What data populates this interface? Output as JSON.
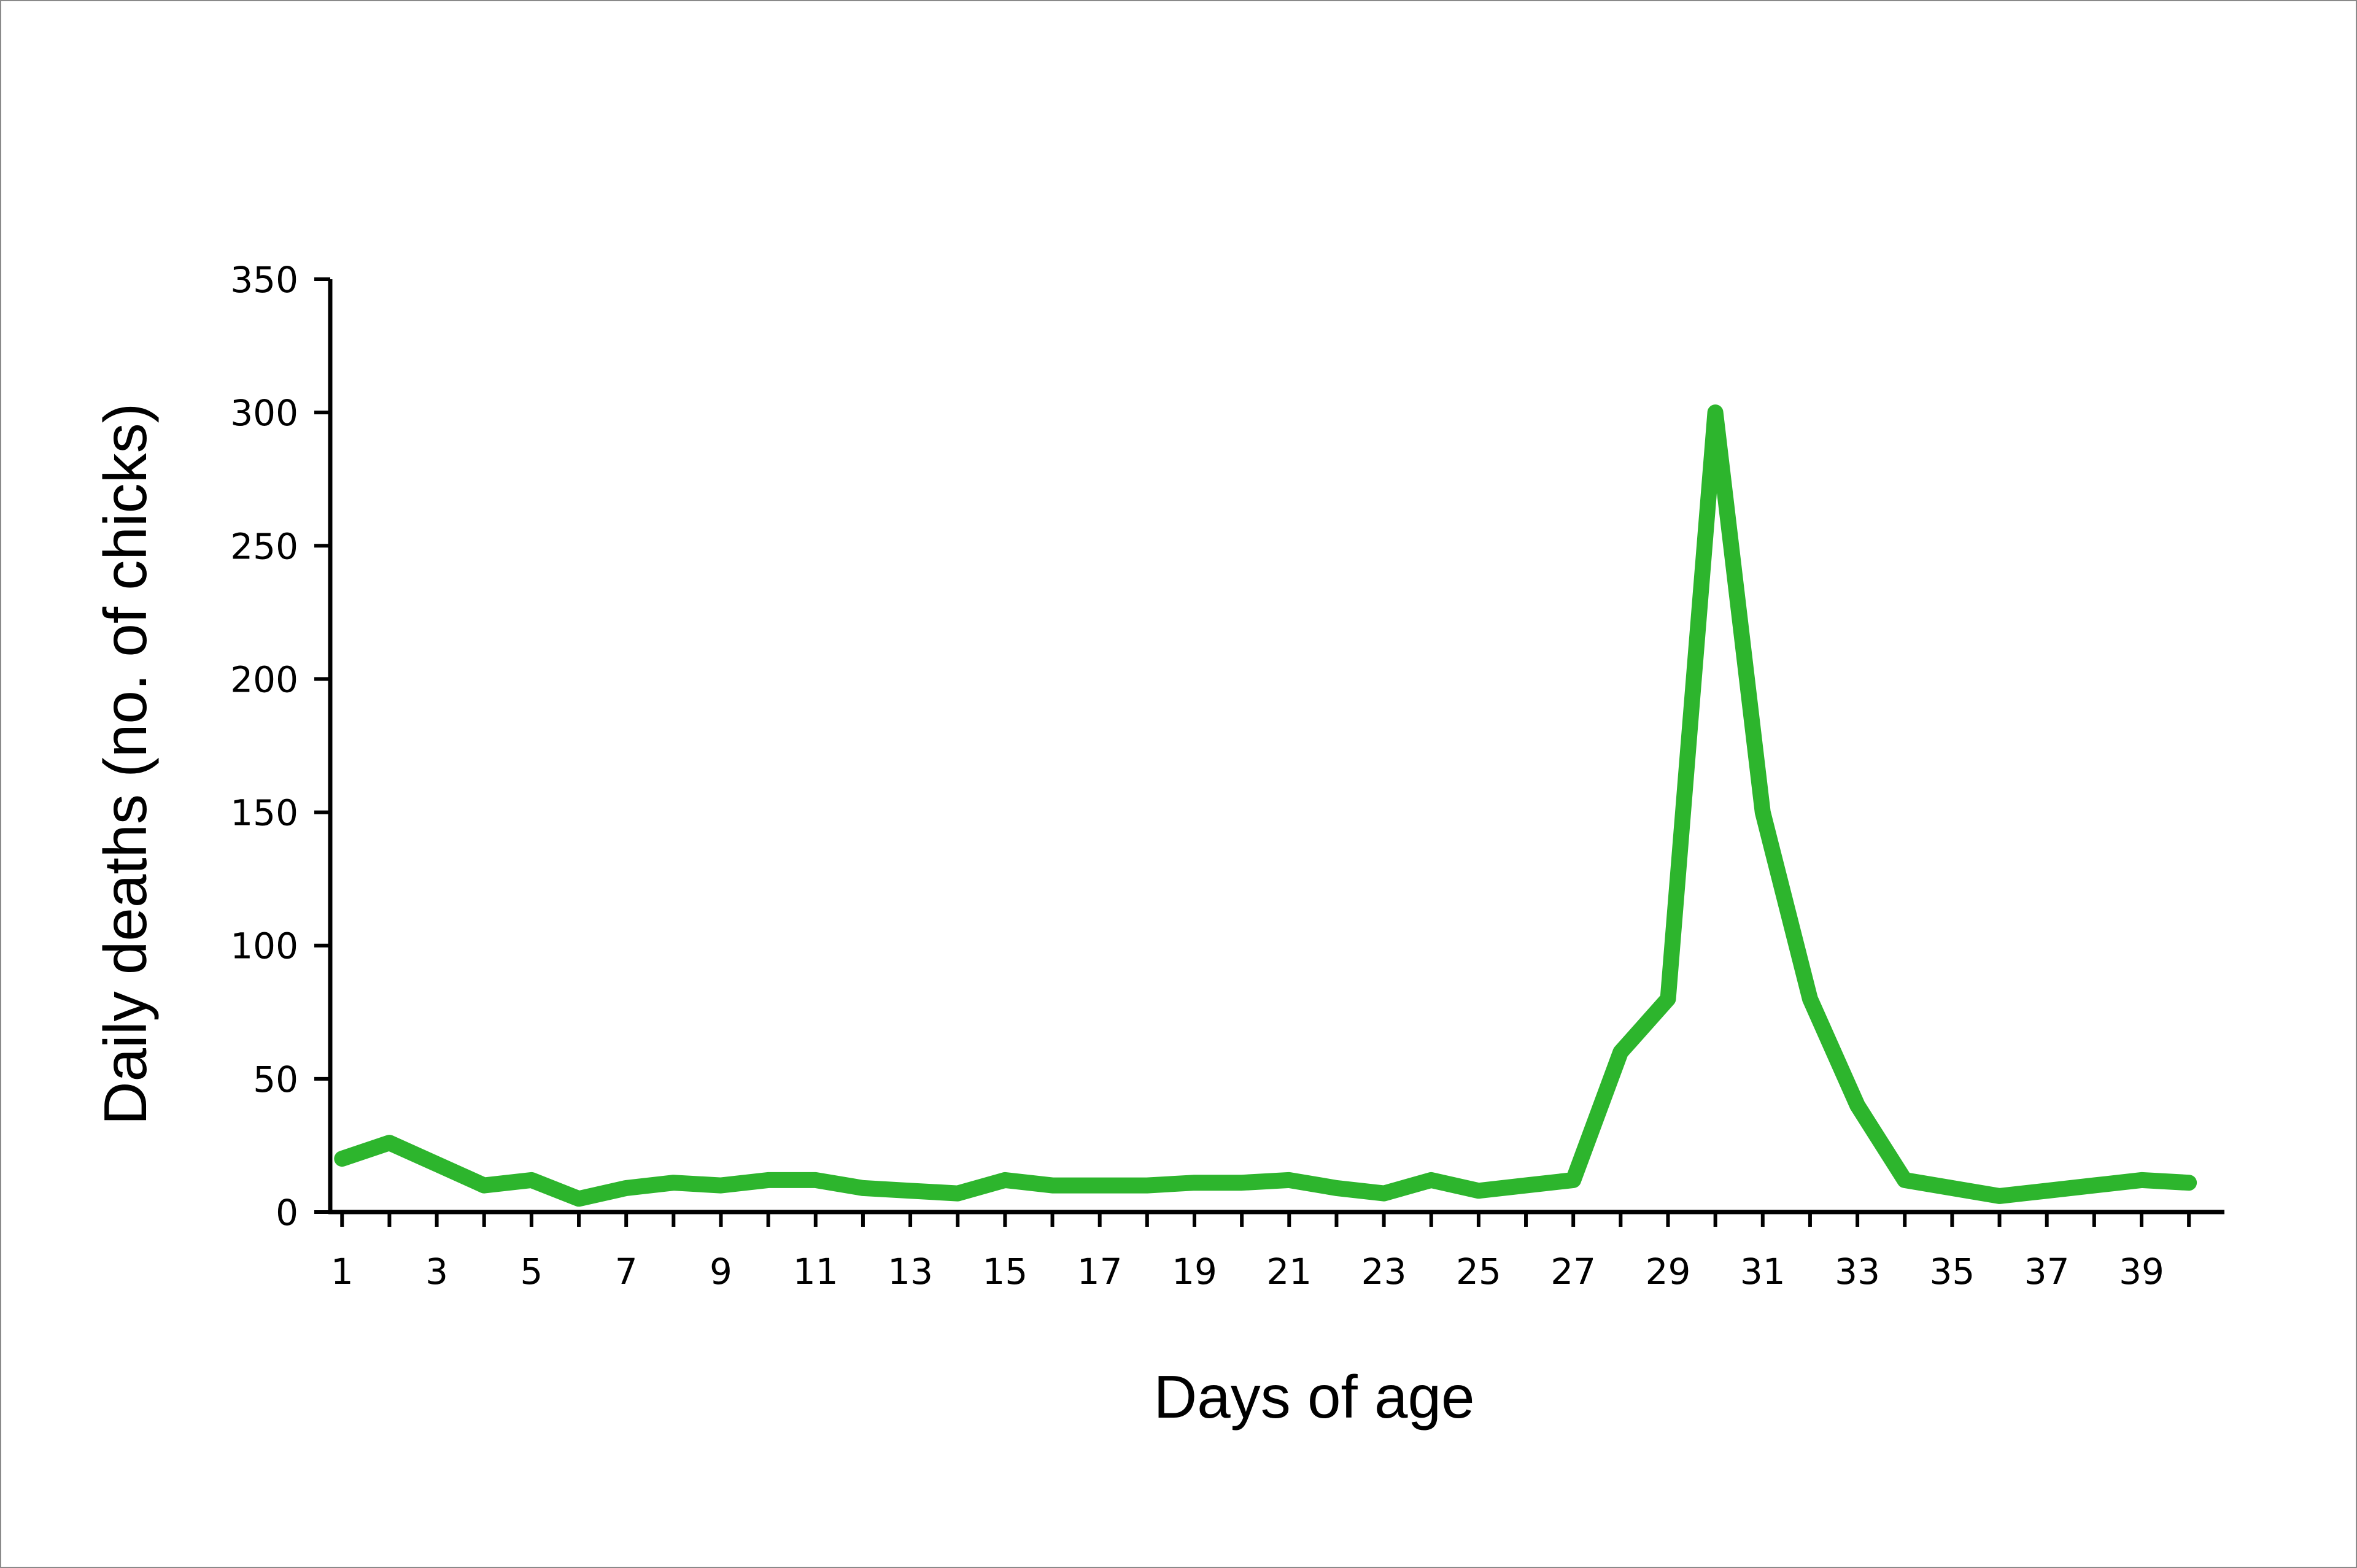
{
  "chart_data": {
    "type": "line",
    "title": "",
    "xlabel": "Days of age",
    "ylabel": "Daily deaths (no. of chicks)",
    "x": [
      1,
      2,
      3,
      4,
      5,
      6,
      7,
      8,
      9,
      10,
      11,
      12,
      13,
      14,
      15,
      16,
      17,
      18,
      19,
      20,
      21,
      22,
      23,
      24,
      25,
      26,
      27,
      28,
      29,
      30,
      31,
      32,
      33,
      34,
      35,
      36,
      37,
      38,
      39,
      40
    ],
    "series": [
      {
        "values": [
          20,
          26,
          18,
          10,
          12,
          5,
          9,
          11,
          10,
          12,
          12,
          9,
          8,
          7,
          12,
          10,
          10,
          10,
          11,
          11,
          12,
          9,
          7,
          12,
          8,
          10,
          12,
          60,
          80,
          300,
          150,
          80,
          40,
          12,
          9,
          6,
          8,
          10,
          12,
          11
        ],
        "color": "#2db52d"
      }
    ],
    "xlim": [
      0.75,
      40.75
    ],
    "ylim": [
      0,
      350
    ],
    "x_tick_labels": [
      "1",
      "3",
      "5",
      "7",
      "9",
      "11",
      "13",
      "15",
      "17",
      "19",
      "21",
      "23",
      "25",
      "27",
      "29",
      "31",
      "33",
      "35",
      "37",
      "39"
    ],
    "y_tick_labels": [
      "0",
      "50",
      "100",
      "150",
      "200",
      "250",
      "300",
      "350"
    ],
    "grid": false,
    "legend": "none"
  }
}
